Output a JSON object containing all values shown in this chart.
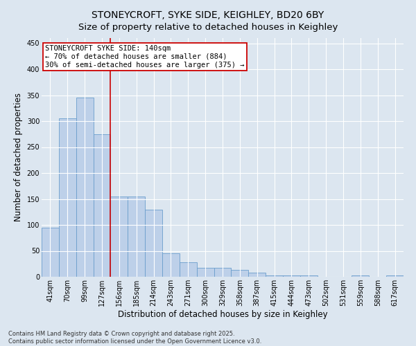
{
  "title": "STONEYCROFT, SYKE SIDE, KEIGHLEY, BD20 6BY",
  "subtitle": "Size of property relative to detached houses in Keighley",
  "xlabel": "Distribution of detached houses by size in Keighley",
  "ylabel": "Number of detached properties",
  "categories": [
    "41sqm",
    "70sqm",
    "99sqm",
    "127sqm",
    "156sqm",
    "185sqm",
    "214sqm",
    "243sqm",
    "271sqm",
    "300sqm",
    "329sqm",
    "358sqm",
    "387sqm",
    "415sqm",
    "444sqm",
    "473sqm",
    "502sqm",
    "531sqm",
    "559sqm",
    "588sqm",
    "617sqm"
  ],
  "values": [
    95,
    305,
    345,
    275,
    155,
    155,
    130,
    45,
    28,
    18,
    18,
    13,
    8,
    3,
    3,
    3,
    0,
    0,
    3,
    0,
    3
  ],
  "bar_color": "#bdd0e9",
  "bar_edge_color": "#6a9ecc",
  "annotation_text": "STONEYCROFT SYKE SIDE: 140sqm\n← 70% of detached houses are smaller (884)\n30% of semi-detached houses are larger (375) →",
  "annotation_box_color": "#ffffff",
  "annotation_box_edge": "#cc0000",
  "vline_color": "#cc0000",
  "vline_x": 3.5,
  "ylim": [
    0,
    460
  ],
  "yticks": [
    0,
    50,
    100,
    150,
    200,
    250,
    300,
    350,
    400,
    450
  ],
  "background_color": "#dce6f0",
  "plot_bg_color": "#dce6f0",
  "grid_color": "#ffffff",
  "footnote": "Contains HM Land Registry data © Crown copyright and database right 2025.\nContains public sector information licensed under the Open Government Licence v3.0.",
  "title_fontsize": 10,
  "xlabel_fontsize": 8.5,
  "ylabel_fontsize": 8.5,
  "tick_fontsize": 7,
  "annot_fontsize": 7.5,
  "footnote_fontsize": 6
}
